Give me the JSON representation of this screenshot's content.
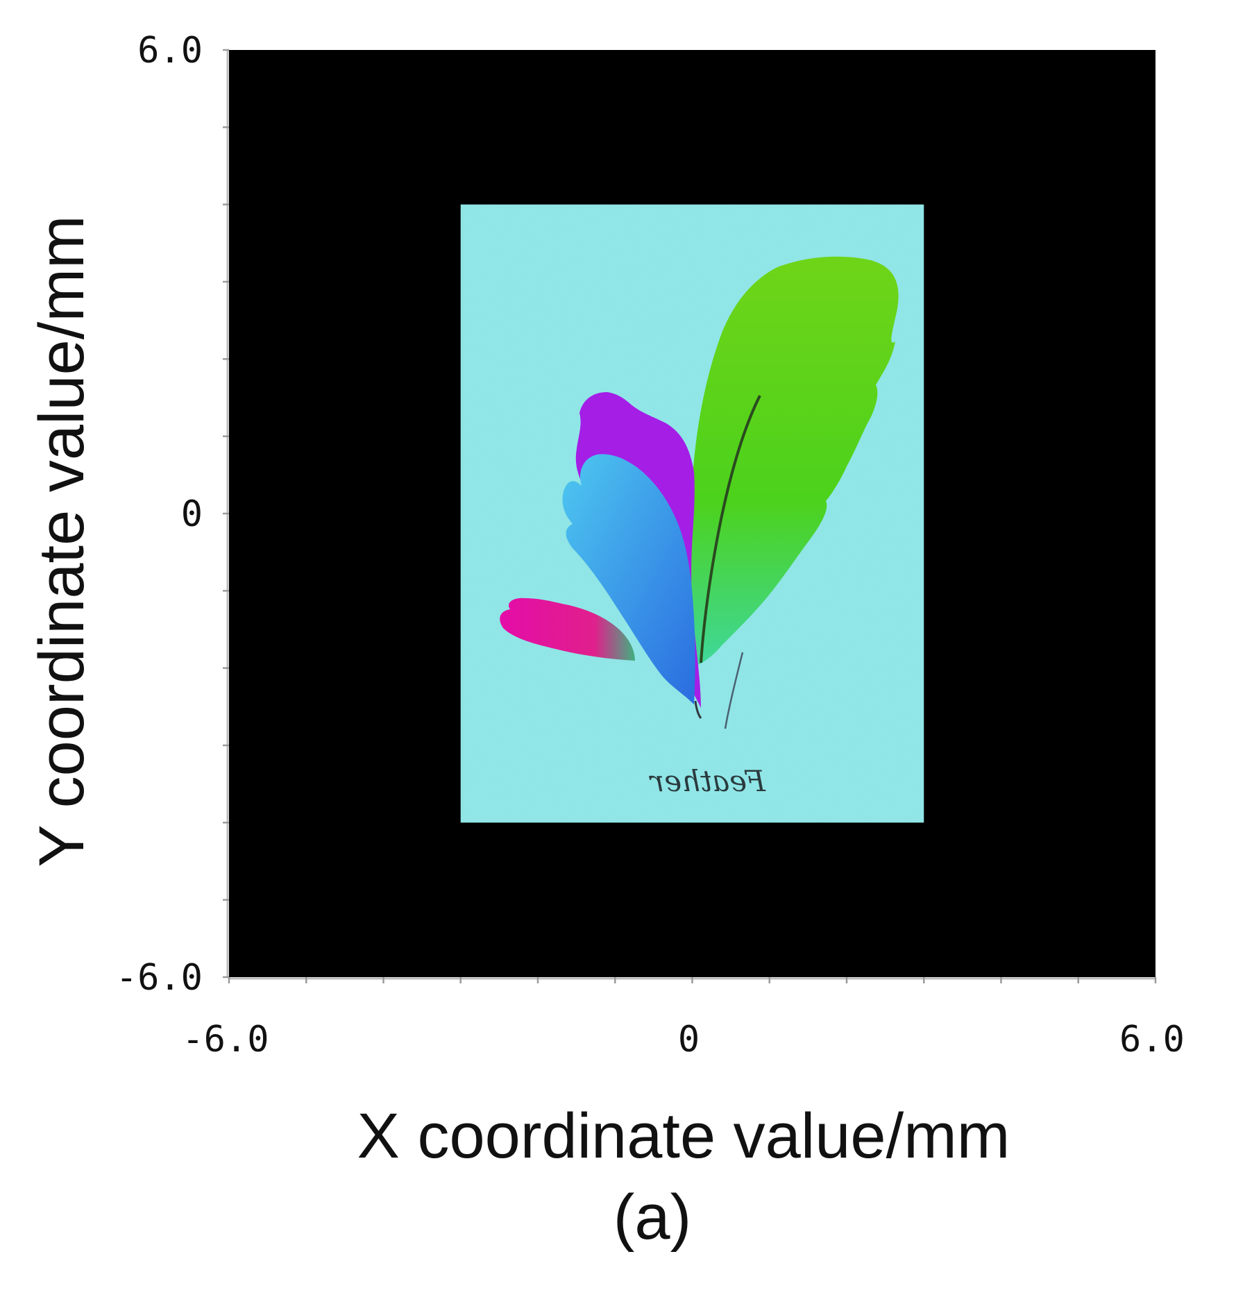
{
  "chart_data": {
    "type": "heatmap",
    "xlabel": "X coordinate value/mm",
    "ylabel": "Y coordinate value/mm",
    "xlim": [
      -6.0,
      6.0
    ],
    "ylim": [
      -6.0,
      6.0
    ],
    "x_ticks": [
      {
        "value": -6.0,
        "label": "-6.0"
      },
      {
        "value": 0,
        "label": "0"
      },
      {
        "value": 6.0,
        "label": "6.0"
      }
    ],
    "y_ticks": [
      {
        "value": 6.0,
        "label": "6.0"
      },
      {
        "value": 0,
        "label": "0"
      },
      {
        "value": -6.0,
        "label": "-6.0"
      }
    ],
    "background_color": "#000000",
    "image_region": {
      "x_min": -3.0,
      "x_max": 3.0,
      "y_min": -4.0,
      "y_max": 4.0
    },
    "image_background_color": "#8fe6e6",
    "image_content": "colored feathers",
    "image_signature": "Feather",
    "panel_label": "(a)"
  },
  "colors": {
    "green_feather": "#5ed21c",
    "purple_feather": "#a020e8",
    "blue_feather": "#2aa0e8",
    "magenta_feather": "#e010b0"
  }
}
